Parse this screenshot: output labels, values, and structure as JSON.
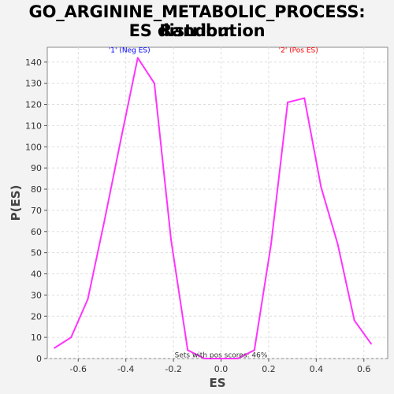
{
  "chart_data": {
    "type": "line",
    "title_lines": [
      "GO_ARGININE_METABOLIC_PROCESS: Random",
      "ES distribution"
    ],
    "xlabel": "ES",
    "ylabel": "P(ES)",
    "xlim": [
      -0.73,
      0.7
    ],
    "ylim": [
      0,
      147
    ],
    "xticks": [
      -0.6,
      -0.4,
      -0.2,
      0.0,
      0.2,
      0.4,
      0.6
    ],
    "xtick_labels": [
      "-0.6",
      "-0.4",
      "-0.2",
      "0.0",
      "0.2",
      "0.4",
      "0.6"
    ],
    "yticks": [
      0,
      10,
      20,
      30,
      40,
      50,
      60,
      70,
      80,
      90,
      100,
      110,
      120,
      130,
      140
    ],
    "grid": true,
    "series": [
      {
        "color": "#ff33ff",
        "x": [
          -0.7,
          -0.63,
          -0.56,
          -0.49,
          -0.42,
          -0.35,
          -0.28,
          -0.21,
          -0.14,
          -0.07,
          0.0,
          0.07,
          0.14,
          0.21,
          0.28,
          0.35,
          0.42,
          0.49,
          0.56,
          0.63
        ],
        "y": [
          5,
          10,
          28,
          65,
          104,
          142,
          130,
          56,
          4,
          0,
          0,
          0,
          4,
          54,
          121,
          123,
          81,
          54,
          18,
          7
        ]
      }
    ],
    "annotations": [
      {
        "text": "'1' (Neg ES)",
        "color": "#0000ff",
        "x": -0.385,
        "y": 146
      },
      {
        "text": "'2' (Pos ES)",
        "color": "#ff0000",
        "x": 0.325,
        "y": 146
      },
      {
        "text": "Sets with pos scores: 46%",
        "color": "#333333",
        "x": 0.0,
        "y": 2
      }
    ]
  }
}
